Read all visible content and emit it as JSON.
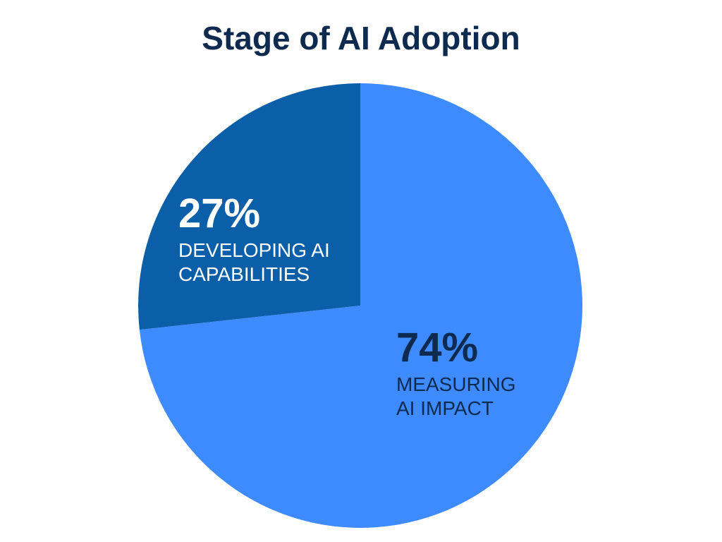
{
  "chart_data": {
    "type": "pie",
    "title": "Stage of AI Adoption",
    "slices": [
      {
        "value": 74,
        "value_label": "74%",
        "label_lines": [
          "MEASURING",
          "AI IMPACT"
        ],
        "color": "#3d8bff",
        "text_color": "#0f2a4f"
      },
      {
        "value": 27,
        "value_label": "27%",
        "label_lines": [
          "DEVELOPING AI",
          "CAPABILITIES"
        ],
        "color": "#0b5ea8",
        "text_color": "#ffffff"
      }
    ],
    "start_angle_deg": 0,
    "direction": "clockwise",
    "legend": "none"
  }
}
